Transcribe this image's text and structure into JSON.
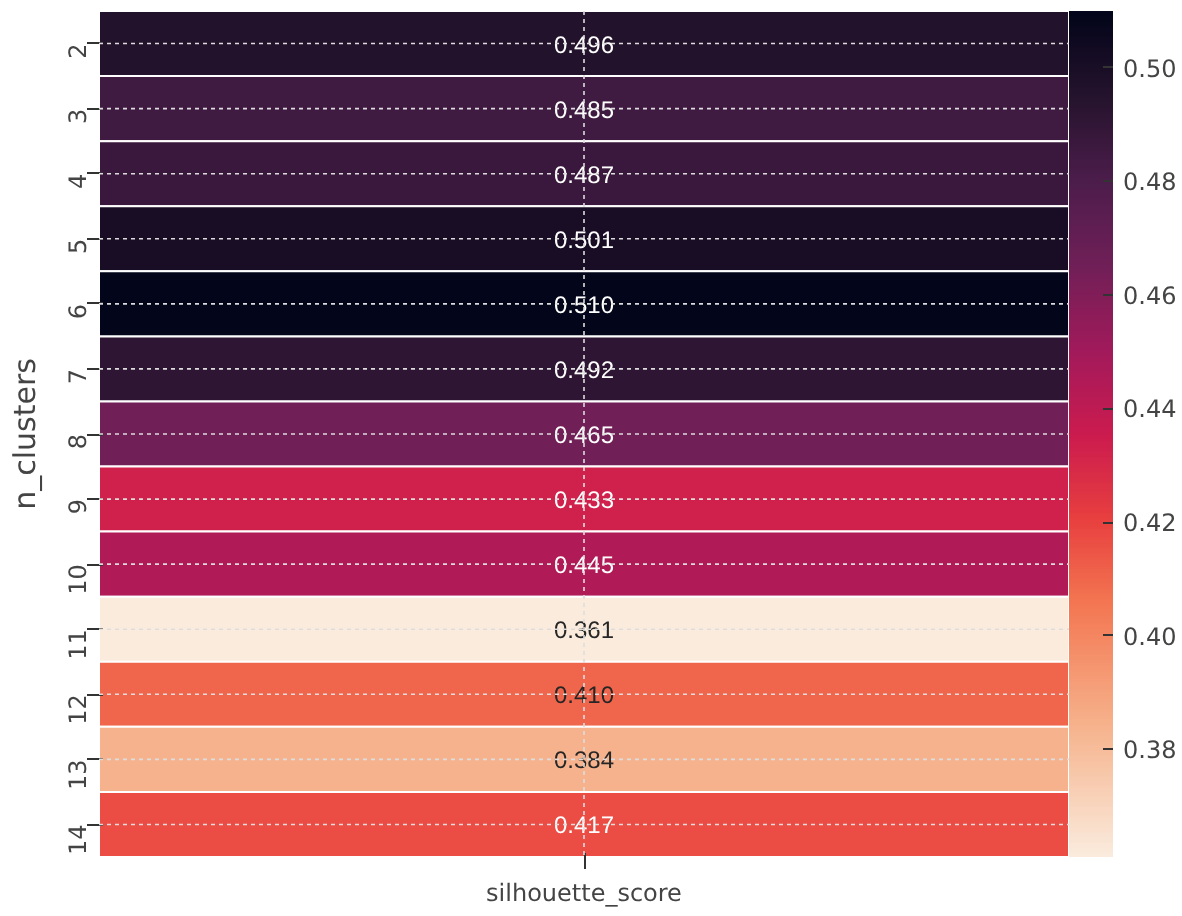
{
  "chart_data": {
    "type": "heatmap",
    "ylabel": "n_clusters",
    "categories": [
      "silhouette_score"
    ],
    "y_categories": [
      "2",
      "3",
      "4",
      "5",
      "6",
      "7",
      "8",
      "9",
      "10",
      "11",
      "12",
      "13",
      "14"
    ],
    "cells": [
      [
        0.496
      ],
      [
        0.485
      ],
      [
        0.487
      ],
      [
        0.501
      ],
      [
        0.51
      ],
      [
        0.492
      ],
      [
        0.465
      ],
      [
        0.433
      ],
      [
        0.445
      ],
      [
        0.361
      ],
      [
        0.41
      ],
      [
        0.384
      ],
      [
        0.417
      ]
    ],
    "clim": [
      0.361,
      0.51
    ],
    "cticks": [
      {
        "value": 0.38,
        "label": "0.38"
      },
      {
        "value": 0.4,
        "label": "0.40"
      },
      {
        "value": 0.42,
        "label": "0.42"
      },
      {
        "value": 0.44,
        "label": "0.44"
      },
      {
        "value": 0.46,
        "label": "0.46"
      },
      {
        "value": 0.48,
        "label": "0.48"
      },
      {
        "value": 0.5,
        "label": "0.50"
      }
    ],
    "cell_labels": [
      [
        "0.496"
      ],
      [
        "0.485"
      ],
      [
        "0.487"
      ],
      [
        "0.501"
      ],
      [
        "0.510"
      ],
      [
        "0.492"
      ],
      [
        "0.465"
      ],
      [
        "0.433"
      ],
      [
        "0.445"
      ],
      [
        "0.361"
      ],
      [
        "0.410"
      ],
      [
        "0.384"
      ],
      [
        "0.417"
      ]
    ],
    "grid": true
  }
}
